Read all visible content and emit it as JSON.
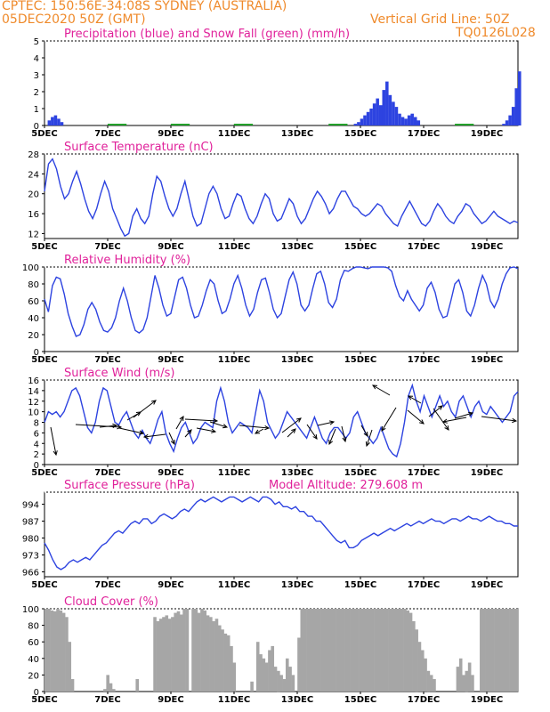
{
  "header": {
    "line1": "CPTEC:    150:56E-34:08S    SYDNEY (AUSTRALIA)",
    "line2": "05DEC2020 50Z (GMT)",
    "grid_note": "Vertical Grid Line: 50Z",
    "code": "TQ0126L028"
  },
  "colors": {
    "header": "#ef8a2b",
    "title": "#e0219a",
    "series": "#2d43e0",
    "snow": "#22a02a",
    "cloud": "#a6a6a6"
  },
  "chart_data": [
    {
      "id": "precip",
      "type": "bar",
      "title": "Precipitation (blue) and Snow Fall (green) (mm/h)",
      "ylim": [
        0,
        5
      ],
      "yticks": [
        0,
        1,
        2,
        3,
        4,
        5
      ],
      "x_labels": [
        "5DEC",
        "7DEC",
        "9DEC",
        "11DEC",
        "13DEC",
        "15DEC",
        "17DEC",
        "19DEC"
      ],
      "series": [
        {
          "values": [
            [
              0.1,
              0.3
            ],
            [
              0.2,
              0.5
            ],
            [
              0.3,
              0.6
            ],
            [
              0.4,
              0.4
            ],
            [
              0.5,
              0.2
            ],
            [
              9.8,
              0.1
            ],
            [
              9.9,
              0.2
            ],
            [
              10.0,
              0.4
            ],
            [
              10.1,
              0.6
            ],
            [
              10.2,
              0.8
            ],
            [
              10.3,
              1.0
            ],
            [
              10.4,
              1.3
            ],
            [
              10.5,
              1.6
            ],
            [
              10.6,
              1.2
            ],
            [
              10.7,
              2.1
            ],
            [
              10.8,
              2.6
            ],
            [
              10.9,
              1.8
            ],
            [
              11.0,
              1.4
            ],
            [
              11.1,
              1.1
            ],
            [
              11.2,
              0.7
            ],
            [
              11.3,
              0.5
            ],
            [
              11.4,
              0.4
            ],
            [
              11.5,
              0.6
            ],
            [
              11.6,
              0.7
            ],
            [
              11.7,
              0.5
            ],
            [
              11.8,
              0.3
            ],
            [
              14.5,
              0.1
            ],
            [
              14.6,
              0.3
            ],
            [
              14.7,
              0.6
            ],
            [
              14.8,
              1.1
            ],
            [
              14.9,
              2.2
            ],
            [
              15.0,
              3.2
            ]
          ]
        },
        {
          "values": [
            [
              2.0,
              0.05
            ],
            [
              4.0,
              0.05
            ],
            [
              6.0,
              0.05
            ],
            [
              9.0,
              0.05
            ],
            [
              13.0,
              0.05
            ]
          ]
        }
      ]
    },
    {
      "id": "temp",
      "type": "line",
      "title": "Surface Temperature (nC)",
      "ylim": [
        11,
        28
      ],
      "yticks": [
        12,
        16,
        20,
        24,
        28
      ],
      "x_labels": [
        "5DEC",
        "7DEC",
        "9DEC",
        "11DEC",
        "13DEC",
        "15DEC",
        "17DEC",
        "19DEC"
      ],
      "values": [
        20.5,
        26,
        27,
        25,
        21.5,
        19,
        20,
        22.5,
        24.5,
        22,
        19,
        16.5,
        15,
        17,
        20,
        22.5,
        20.5,
        17,
        15,
        13,
        11.5,
        12,
        15.5,
        17,
        15,
        14,
        15.5,
        20,
        23.5,
        22.5,
        19.5,
        17,
        15.5,
        17,
        20,
        22.5,
        19,
        15.5,
        13.5,
        14,
        17,
        20,
        21.5,
        20,
        17,
        15,
        15.5,
        18,
        20,
        19.5,
        17,
        15,
        14,
        15.5,
        18,
        20,
        19,
        16,
        14.5,
        15,
        17,
        19,
        18,
        15.5,
        14,
        15,
        17,
        19,
        20.5,
        19.5,
        18,
        16,
        17,
        19,
        20.5,
        20.5,
        19,
        17.5,
        17,
        16,
        15.5,
        16,
        17,
        18,
        17.5,
        16,
        15,
        14,
        13.5,
        15.5,
        17,
        18.5,
        17,
        15.5,
        14,
        13.5,
        14.5,
        16.5,
        18,
        17,
        15.5,
        14.5,
        14,
        15.5,
        16.5,
        18,
        17.5,
        16,
        15,
        14,
        14.5,
        15.5,
        16.5,
        15.5,
        15,
        14.5,
        14,
        14.5,
        14.2
      ]
    },
    {
      "id": "rh",
      "type": "line",
      "title": "Relative Humidity (%)",
      "ylim": [
        0,
        100
      ],
      "yticks": [
        0,
        20,
        40,
        60,
        80,
        100
      ],
      "x_labels": [
        "5DEC",
        "7DEC",
        "9DEC",
        "11DEC",
        "13DEC",
        "15DEC",
        "17DEC",
        "19DEC"
      ],
      "values": [
        62,
        47,
        78,
        88,
        86,
        68,
        45,
        30,
        18,
        20,
        32,
        50,
        58,
        50,
        35,
        25,
        23,
        28,
        40,
        60,
        75,
        60,
        40,
        25,
        22,
        26,
        40,
        65,
        90,
        75,
        55,
        42,
        45,
        65,
        85,
        88,
        75,
        55,
        40,
        42,
        55,
        72,
        85,
        80,
        60,
        45,
        48,
        62,
        80,
        90,
        75,
        55,
        42,
        50,
        70,
        85,
        87,
        70,
        50,
        40,
        45,
        65,
        85,
        94,
        80,
        55,
        48,
        55,
        75,
        92,
        95,
        80,
        58,
        52,
        62,
        85,
        96,
        95,
        98,
        100,
        100,
        99,
        98,
        100,
        100,
        100,
        100,
        99,
        95,
        78,
        65,
        60,
        72,
        62,
        55,
        48,
        55,
        75,
        82,
        70,
        50,
        40,
        42,
        60,
        80,
        85,
        70,
        48,
        42,
        55,
        75,
        90,
        80,
        60,
        52,
        62,
        80,
        92,
        99,
        100,
        98
      ]
    },
    {
      "id": "wind",
      "type": "line",
      "title": "Surface Wind (m/s)",
      "ylim": [
        0,
        16
      ],
      "yticks": [
        0,
        2,
        4,
        6,
        8,
        10,
        12,
        14,
        16
      ],
      "x_labels": [
        "5DEC",
        "7DEC",
        "9DEC",
        "11DEC",
        "13DEC",
        "15DEC",
        "17DEC",
        "19DEC"
      ],
      "values": [
        8,
        10,
        9.5,
        10,
        9,
        10,
        12,
        14,
        14.5,
        13,
        10,
        7,
        6,
        8,
        12,
        14.5,
        14,
        11,
        8,
        7.5,
        9,
        10,
        8,
        6,
        5,
        6.5,
        5,
        4,
        6,
        8.5,
        10,
        6,
        4,
        2.5,
        5,
        7,
        8,
        6,
        4,
        5,
        7,
        8,
        7.5,
        7,
        12,
        14.5,
        12,
        8,
        6,
        7,
        8,
        7.5,
        7,
        6,
        10,
        14,
        12,
        8,
        6.5,
        5,
        6,
        8,
        10,
        9,
        8,
        7,
        6,
        5,
        7,
        9,
        7,
        5,
        4,
        6,
        7,
        7,
        6,
        5,
        6,
        9,
        10,
        8,
        6,
        5,
        4,
        5,
        7,
        5,
        3,
        2,
        1.5,
        4,
        8,
        13,
        15,
        12,
        10,
        13,
        11,
        9,
        11,
        13,
        11,
        12,
        10,
        9,
        12,
        13,
        11,
        9,
        11,
        12,
        10,
        9.5,
        11,
        10,
        9,
        8,
        9,
        10,
        13,
        13.8
      ]
    },
    {
      "id": "pressure",
      "type": "line",
      "title": "Surface Pressure (hPa)",
      "subtitle": "Model Altitude: 279.608  m",
      "ylim": [
        964,
        999
      ],
      "yticks": [
        966,
        973,
        980,
        987,
        994
      ],
      "ytick_labels": [
        "966",
        "973",
        "980",
        "987",
        "994"
      ],
      "x_labels": [
        "5DEC",
        "7DEC",
        "9DEC",
        "11DEC",
        "13DEC",
        "15DEC",
        "17DEC",
        "19DEC"
      ],
      "values": [
        978,
        975,
        971,
        968,
        967,
        968,
        970,
        971,
        970,
        971,
        972,
        971,
        973,
        975,
        977,
        978,
        980,
        982,
        983,
        982,
        984,
        986,
        987,
        986,
        988,
        988,
        986,
        987,
        989,
        990,
        989,
        988,
        989,
        991,
        992,
        991,
        993,
        995,
        996,
        995,
        996,
        997,
        996,
        995,
        996,
        997,
        997,
        996,
        995,
        996,
        997,
        996,
        995,
        997,
        997,
        996,
        994,
        995,
        993,
        993,
        992,
        993,
        991,
        991,
        989,
        989,
        987,
        987,
        985,
        983,
        981,
        979,
        978,
        979,
        976,
        976,
        977,
        979,
        980,
        981,
        982,
        981,
        982,
        983,
        984,
        983,
        984,
        985,
        986,
        985,
        986,
        987,
        986,
        987,
        988,
        987,
        987,
        986,
        987,
        988,
        988,
        987,
        988,
        989,
        988,
        988,
        987,
        988,
        989,
        988,
        987,
        987,
        986,
        986,
        985,
        985
      ]
    },
    {
      "id": "cloud",
      "type": "area",
      "title": "Cloud Cover (%)",
      "ylim": [
        0,
        100
      ],
      "yticks": [
        0,
        20,
        40,
        60,
        80,
        100
      ],
      "x_labels": [
        "5DEC",
        "7DEC",
        "9DEC",
        "11DEC",
        "13DEC",
        "15DEC",
        "17DEC",
        "19DEC"
      ],
      "values": [
        100,
        100,
        98,
        97,
        100,
        98,
        95,
        90,
        60,
        15,
        0,
        0,
        0,
        0,
        0,
        0,
        0,
        0,
        0,
        0,
        3,
        20,
        10,
        3,
        0,
        0,
        0,
        0,
        0,
        0,
        0,
        15,
        0,
        0,
        0,
        0,
        0,
        90,
        85,
        88,
        90,
        92,
        88,
        90,
        95,
        97,
        93,
        100,
        100,
        0,
        100,
        100,
        95,
        100,
        98,
        92,
        90,
        85,
        88,
        80,
        75,
        70,
        68,
        55,
        35,
        0,
        0,
        0,
        0,
        0,
        12,
        0,
        60,
        45,
        40,
        35,
        50,
        55,
        30,
        25,
        20,
        15,
        40,
        30,
        20,
        0,
        65,
        100,
        100,
        100,
        100,
        100,
        100,
        100,
        100,
        100,
        100,
        100,
        100,
        100,
        100,
        100,
        100,
        100,
        100,
        100,
        100,
        100,
        100,
        100,
        100,
        100,
        100,
        100,
        100,
        100,
        100,
        100,
        100,
        100,
        100,
        100,
        100,
        98,
        95,
        85,
        75,
        60,
        50,
        40,
        25,
        20,
        15,
        0,
        0,
        0,
        0,
        0,
        0,
        0,
        30,
        40,
        20,
        25,
        35,
        20,
        0,
        0,
        100,
        100,
        100,
        100,
        100,
        100,
        100,
        100,
        100,
        100,
        100,
        100,
        100
      ]
    }
  ]
}
